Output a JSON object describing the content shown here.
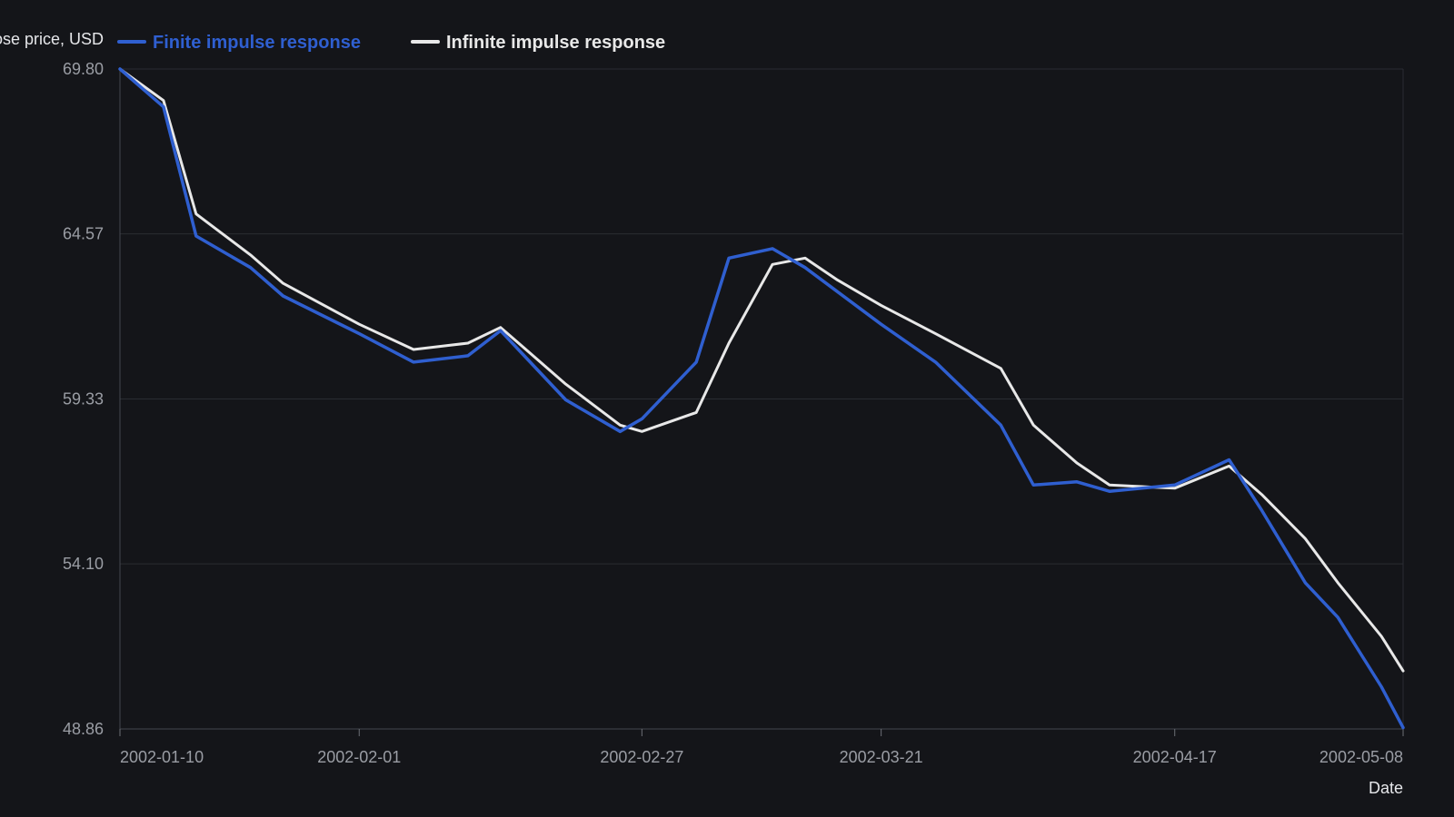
{
  "chart_data": {
    "type": "line",
    "ylabel": "Close price, USD",
    "xlabel": "Date",
    "ylim": [
      48.86,
      69.8
    ],
    "y_ticks": [
      "69.80",
      "64.57",
      "59.33",
      "54.10",
      "48.86"
    ],
    "x_ticks": [
      "2002-01-10",
      "2002-02-01",
      "2002-02-27",
      "2002-03-21",
      "2002-04-17",
      "2002-05-08"
    ],
    "grid": "horizontal",
    "legend_position": "top-left",
    "series": [
      {
        "name": "Finite impulse response",
        "color": "#2f5fd0",
        "points": [
          [
            "2002-01-10",
            69.8
          ],
          [
            "2002-01-14",
            68.6
          ],
          [
            "2002-01-17",
            64.5
          ],
          [
            "2002-01-22",
            63.5
          ],
          [
            "2002-01-25",
            62.6
          ],
          [
            "2002-02-01",
            61.4
          ],
          [
            "2002-02-06",
            60.5
          ],
          [
            "2002-02-11",
            60.7
          ],
          [
            "2002-02-14",
            61.5
          ],
          [
            "2002-02-20",
            59.3
          ],
          [
            "2002-02-25",
            58.3
          ],
          [
            "2002-02-27",
            58.7
          ],
          [
            "2002-03-04",
            60.5
          ],
          [
            "2002-03-07",
            63.8
          ],
          [
            "2002-03-11",
            64.1
          ],
          [
            "2002-03-14",
            63.5
          ],
          [
            "2002-03-21",
            61.7
          ],
          [
            "2002-03-26",
            60.5
          ],
          [
            "2002-04-01",
            58.5
          ],
          [
            "2002-04-04",
            56.6
          ],
          [
            "2002-04-08",
            56.7
          ],
          [
            "2002-04-11",
            56.4
          ],
          [
            "2002-04-17",
            56.6
          ],
          [
            "2002-04-22",
            57.4
          ],
          [
            "2002-04-25",
            55.8
          ],
          [
            "2002-04-29",
            53.5
          ],
          [
            "2002-05-02",
            52.4
          ],
          [
            "2002-05-06",
            50.2
          ],
          [
            "2002-05-08",
            48.9
          ]
        ]
      },
      {
        "name": "Infinite impulse response",
        "color": "#e8e8e8",
        "points": [
          [
            "2002-01-10",
            69.8
          ],
          [
            "2002-01-14",
            68.8
          ],
          [
            "2002-01-17",
            65.2
          ],
          [
            "2002-01-22",
            63.9
          ],
          [
            "2002-01-25",
            63.0
          ],
          [
            "2002-02-01",
            61.7
          ],
          [
            "2002-02-06",
            60.9
          ],
          [
            "2002-02-11",
            61.1
          ],
          [
            "2002-02-14",
            61.6
          ],
          [
            "2002-02-20",
            59.8
          ],
          [
            "2002-02-25",
            58.5
          ],
          [
            "2002-02-27",
            58.3
          ],
          [
            "2002-03-04",
            58.9
          ],
          [
            "2002-03-07",
            61.1
          ],
          [
            "2002-03-11",
            63.6
          ],
          [
            "2002-03-14",
            63.8
          ],
          [
            "2002-03-17",
            63.1
          ],
          [
            "2002-03-21",
            62.3
          ],
          [
            "2002-03-26",
            61.4
          ],
          [
            "2002-04-01",
            60.3
          ],
          [
            "2002-04-04",
            58.5
          ],
          [
            "2002-04-08",
            57.3
          ],
          [
            "2002-04-11",
            56.6
          ],
          [
            "2002-04-17",
            56.5
          ],
          [
            "2002-04-22",
            57.2
          ],
          [
            "2002-04-25",
            56.3
          ],
          [
            "2002-04-29",
            54.9
          ],
          [
            "2002-05-02",
            53.5
          ],
          [
            "2002-05-06",
            51.8
          ],
          [
            "2002-05-08",
            50.7
          ]
        ]
      }
    ]
  }
}
